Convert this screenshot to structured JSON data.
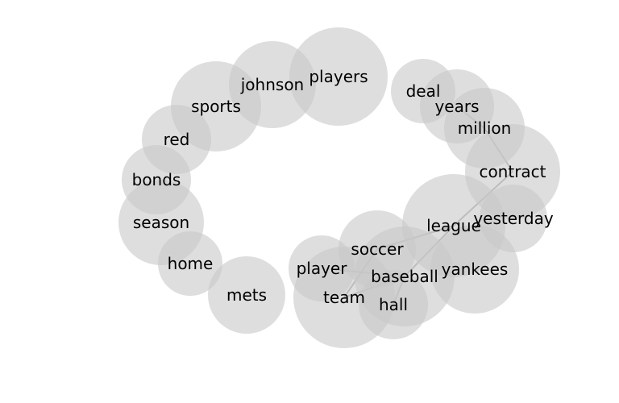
{
  "style": {
    "bubble_color": "#c8c8c8",
    "edge_color": "#999999",
    "text_color": "#000000"
  },
  "nodes": [
    {
      "id": "players",
      "label": "players"
    },
    {
      "id": "johnson",
      "label": "johnson"
    },
    {
      "id": "sports",
      "label": "sports"
    },
    {
      "id": "red",
      "label": "red"
    },
    {
      "id": "bonds",
      "label": "bonds"
    },
    {
      "id": "season",
      "label": "season"
    },
    {
      "id": "home",
      "label": "home"
    },
    {
      "id": "mets",
      "label": "mets"
    },
    {
      "id": "team",
      "label": "team"
    },
    {
      "id": "player",
      "label": "player"
    },
    {
      "id": "soccer",
      "label": "soccer"
    },
    {
      "id": "baseball",
      "label": "baseball"
    },
    {
      "id": "hall",
      "label": "hall"
    },
    {
      "id": "league",
      "label": "league"
    },
    {
      "id": "yankees",
      "label": "yankees"
    },
    {
      "id": "yesterday",
      "label": "yesterday"
    },
    {
      "id": "contract",
      "label": "contract"
    },
    {
      "id": "million",
      "label": "million"
    },
    {
      "id": "years",
      "label": "years"
    },
    {
      "id": "deal",
      "label": "deal"
    }
  ],
  "edges": [
    {
      "from": "years",
      "to": "million"
    },
    {
      "from": "million",
      "to": "contract"
    },
    {
      "from": "contract",
      "to": "league"
    },
    {
      "from": "league",
      "to": "baseball"
    },
    {
      "from": "league",
      "to": "soccer"
    },
    {
      "from": "soccer",
      "to": "team"
    },
    {
      "from": "player",
      "to": "baseball"
    },
    {
      "from": "team",
      "to": "baseball"
    },
    {
      "from": "baseball",
      "to": "hall"
    }
  ]
}
